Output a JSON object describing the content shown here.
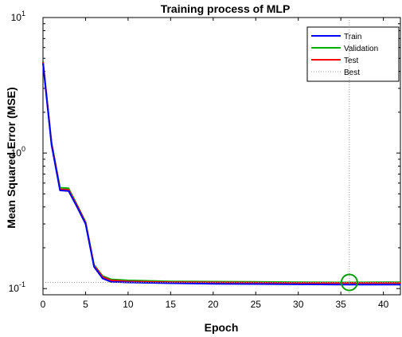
{
  "chart_data": {
    "type": "line",
    "title": "Training process of MLP",
    "xlabel": "Epoch",
    "ylabel": "Mean Squared Error  (MSE)",
    "xlim": [
      0,
      42
    ],
    "ylim": [
      0.09,
      10
    ],
    "yscale": "log",
    "grid": false,
    "legend_position": "top-right",
    "x_ticks": [
      0,
      5,
      10,
      15,
      20,
      25,
      30,
      35,
      40
    ],
    "y_ticks": [
      {
        "value": 10,
        "base": "10",
        "exp": "1"
      },
      {
        "value": 1,
        "base": "10",
        "exp": "0"
      },
      {
        "value": 0.1,
        "base": "10",
        "exp": "-1"
      }
    ],
    "series": [
      {
        "name": "Train",
        "color": "#0000ff",
        "x": [
          0,
          1,
          2,
          3,
          4,
          5,
          6,
          7,
          8,
          10,
          15,
          20,
          25,
          30,
          35,
          36,
          40,
          42
        ],
        "y": [
          4.6,
          1.15,
          0.53,
          0.525,
          0.4,
          0.3,
          0.145,
          0.119,
          0.112,
          0.111,
          0.1095,
          0.1085,
          0.108,
          0.1075,
          0.107,
          0.107,
          0.107,
          0.107
        ]
      },
      {
        "name": "Validation",
        "color": "#00b000",
        "x": [
          0,
          1,
          2,
          3,
          4,
          5,
          6,
          7,
          8,
          10,
          15,
          20,
          25,
          30,
          35,
          36,
          40,
          42
        ],
        "y": [
          4.75,
          1.2,
          0.555,
          0.55,
          0.415,
          0.31,
          0.15,
          0.124,
          0.117,
          0.115,
          0.113,
          0.1125,
          0.112,
          0.1115,
          0.111,
          0.111,
          0.1115,
          0.1115
        ]
      },
      {
        "name": "Test",
        "color": "#ff0000",
        "x": [
          0,
          1,
          2,
          3,
          4,
          5,
          6,
          7,
          8,
          10,
          15,
          20,
          25,
          30,
          35,
          36,
          40,
          42
        ],
        "y": [
          4.7,
          1.18,
          0.54,
          0.535,
          0.41,
          0.305,
          0.148,
          0.122,
          0.115,
          0.113,
          0.1115,
          0.111,
          0.1105,
          0.11,
          0.11,
          0.11,
          0.11,
          0.11
        ]
      }
    ],
    "best": {
      "name": "Best",
      "epoch": 36,
      "value": 0.111,
      "color": "#00a000"
    }
  }
}
